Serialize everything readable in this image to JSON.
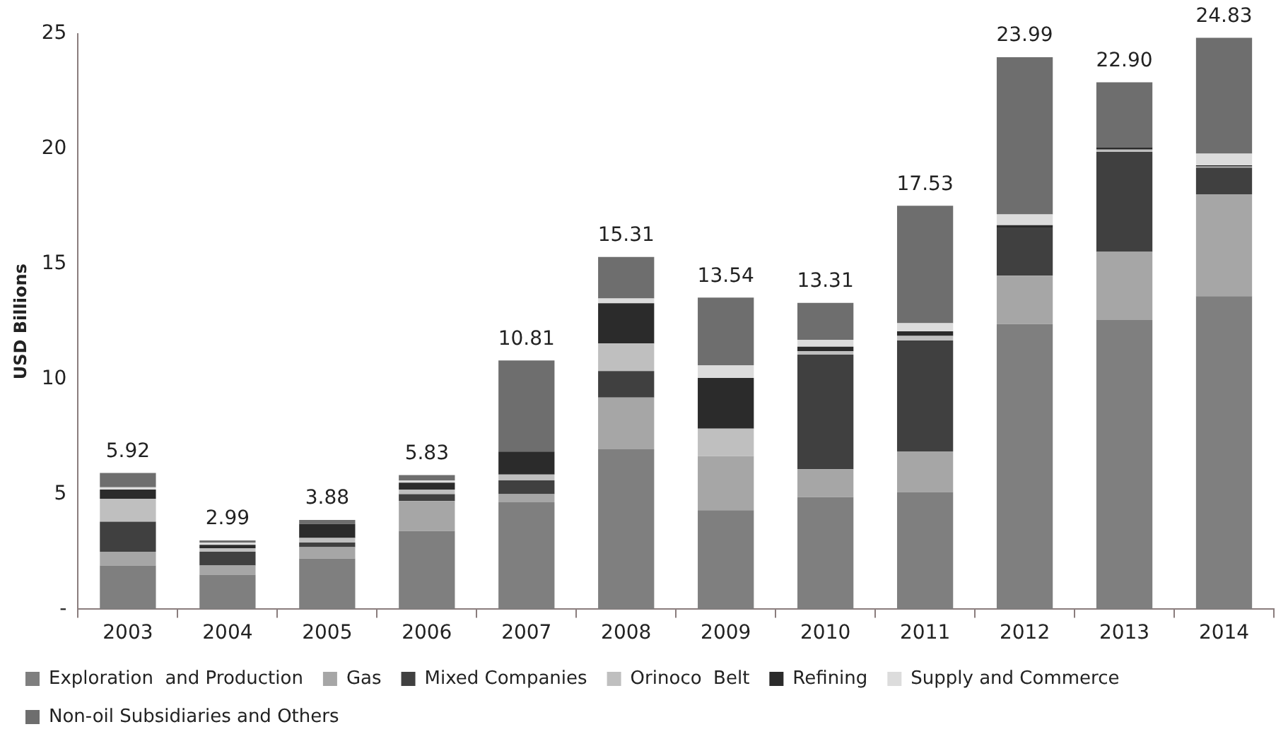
{
  "chart_data": {
    "type": "bar",
    "stacked": true,
    "ylabel": "USD Billions",
    "categories": [
      "2003",
      "2004",
      "2005",
      "2006",
      "2007",
      "2008",
      "2009",
      "2010",
      "2011",
      "2012",
      "2013",
      "2014"
    ],
    "series": [
      {
        "name": "Exploration  and Production",
        "color": "#7f7f7f",
        "values": [
          1.9,
          1.5,
          2.2,
          3.4,
          4.65,
          6.95,
          4.3,
          4.87,
          5.09,
          12.39,
          12.57,
          13.6
        ]
      },
      {
        "name": "Gas",
        "color": "#a6a6a6",
        "values": [
          0.6,
          0.4,
          0.5,
          1.3,
          0.35,
          2.25,
          2.35,
          1.21,
          1.77,
          2.1,
          2.96,
          4.43
        ]
      },
      {
        "name": "Mixed Companies",
        "color": "#404040",
        "values": [
          1.3,
          0.6,
          0.2,
          0.3,
          0.6,
          1.15,
          0,
          4.98,
          4.82,
          2.1,
          4.34,
          1.16
        ]
      },
      {
        "name": "Orinoco  Belt",
        "color": "#bfbfbf",
        "values": [
          1.0,
          0.15,
          0.2,
          0.2,
          0.25,
          1.2,
          1.2,
          0.15,
          0.2,
          null,
          0.1,
          0.05
        ]
      },
      {
        "name": "Refining",
        "color": "#2b2b2b",
        "values": [
          0.4,
          0.15,
          0.6,
          0.3,
          1.0,
          1.75,
          2.2,
          0.2,
          0.2,
          0.1,
          0.1,
          0.05
        ]
      },
      {
        "name": "Supply and Commerce",
        "color": "#dcdcdc",
        "values": [
          0.1,
          0.1,
          null,
          0.1,
          null,
          0.2,
          0.55,
          0.3,
          0.35,
          0.47,
          null,
          0.51
        ]
      },
      {
        "name": "Non-oil Subsidiaries and Others",
        "color": "#6e6e6e",
        "values": [
          0.62,
          0.09,
          0.18,
          0.23,
          3.96,
          1.81,
          2.94,
          1.6,
          5.1,
          6.83,
          2.83,
          5.03
        ]
      }
    ],
    "totals": [
      "5.92",
      "2.99",
      "3.88",
      "5.83",
      "10.81",
      "15.31",
      "13.54",
      "13.31",
      "17.53",
      "23.99",
      "22.90",
      "24.83"
    ],
    "ylim": [
      0,
      25
    ],
    "yticks": [
      {
        "value": 0,
        "label": "-"
      },
      5,
      10,
      15,
      20,
      25
    ],
    "grid": false,
    "legend": "bottom"
  }
}
